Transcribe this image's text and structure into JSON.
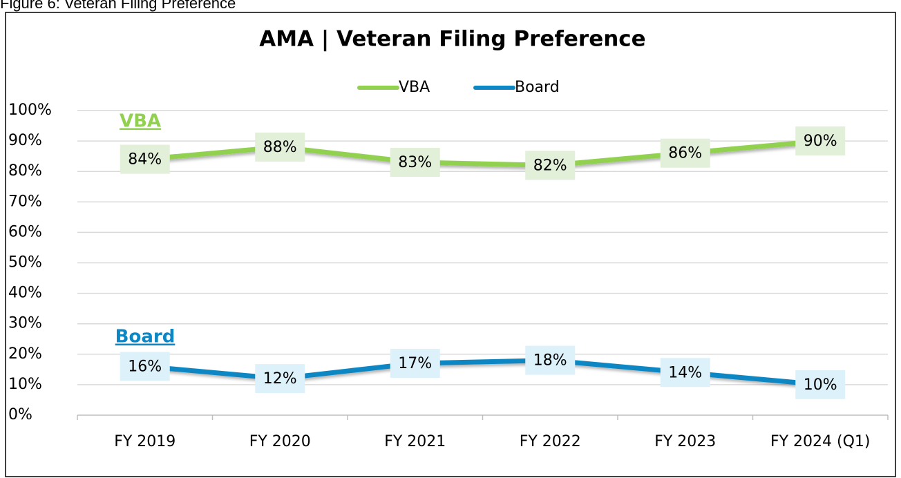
{
  "caption": "Figure 6: Veteran Filing Preference",
  "chart_data": {
    "type": "line",
    "title": "AMA | Veteran Filing Preference",
    "categories": [
      "FY 2019",
      "FY 2020",
      "FY 2021",
      "FY 2022",
      "FY 2023",
      "FY 2024 (Q1)"
    ],
    "series": [
      {
        "name": "VBA",
        "color": "#92d050",
        "label_fill": "#e2efd9",
        "values": [
          84,
          88,
          83,
          82,
          86,
          90
        ],
        "value_labels": [
          "84%",
          "88%",
          "83%",
          "82%",
          "86%",
          "90%"
        ]
      },
      {
        "name": "Board",
        "color": "#0e86c4",
        "label_fill": "#ddf1fb",
        "values": [
          16,
          12,
          17,
          18,
          14,
          10
        ],
        "value_labels": [
          "16%",
          "12%",
          "17%",
          "18%",
          "14%",
          "10%"
        ]
      }
    ],
    "annotations": [
      "VBA",
      "Board"
    ],
    "ylim": [
      0,
      100
    ],
    "yticks": [
      {
        "value": 0,
        "label": "0%"
      },
      {
        "value": 10,
        "label": "10%"
      },
      {
        "value": 20,
        "label": "20%"
      },
      {
        "value": 30,
        "label": "30%"
      },
      {
        "value": 40,
        "label": "40%"
      },
      {
        "value": 50,
        "label": "50%"
      },
      {
        "value": 60,
        "label": "60%"
      },
      {
        "value": 70,
        "label": "70%"
      },
      {
        "value": 80,
        "label": "80%"
      },
      {
        "value": 90,
        "label": "90%"
      },
      {
        "value": 100,
        "label": "100%"
      }
    ],
    "grid": true,
    "legend": "top"
  }
}
